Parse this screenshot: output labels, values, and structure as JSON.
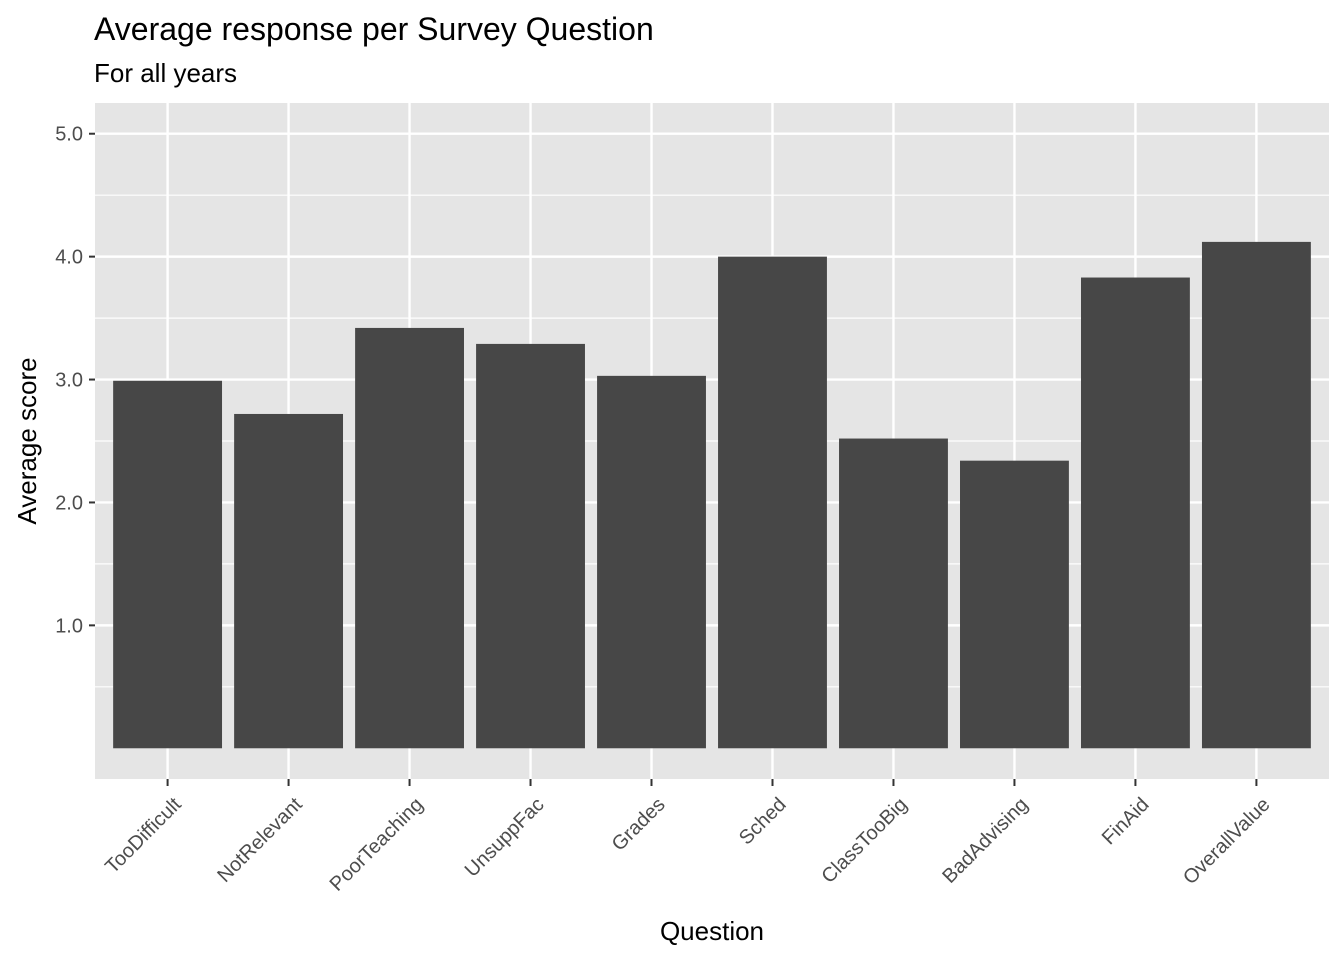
{
  "chart_data": {
    "type": "bar",
    "title": "Average response per Survey Question",
    "subtitle": "For all years",
    "xlabel": "Question",
    "ylabel": "Average score",
    "categories": [
      "TooDifficult",
      "NotRelevant",
      "PoorTeaching",
      "UnsuppFac",
      "Grades",
      "Sched",
      "ClassTooBig",
      "BadAdvising",
      "FinAid",
      "OverallValue"
    ],
    "values": [
      2.99,
      2.72,
      3.42,
      3.29,
      3.03,
      4.0,
      2.52,
      2.34,
      3.83,
      4.12
    ],
    "yticks": [
      1.0,
      2.0,
      3.0,
      4.0,
      5.0
    ],
    "ytick_labels": [
      "1.0",
      "2.0",
      "3.0",
      "4.0",
      "5.0"
    ],
    "ylim": [
      -0.25,
      5.25
    ],
    "grid": true,
    "colors": {
      "panel": "#e5e5e5",
      "grid": "#ffffff",
      "bar": "#474747",
      "tick": "#333333"
    }
  }
}
